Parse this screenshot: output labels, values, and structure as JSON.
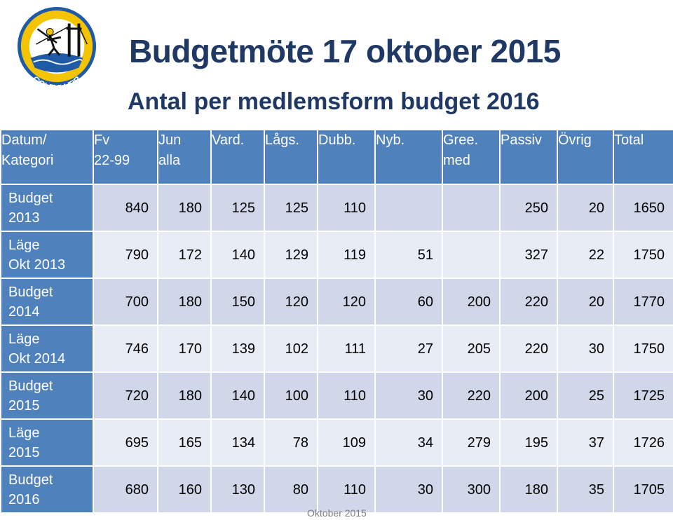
{
  "logo": {
    "top_text": "TJÖRNS",
    "bottom_text": "GOLFKLUBB"
  },
  "title": "Budgetmöte 17 oktober 2015",
  "subtitle": "Antal per medlemsform budget 2016",
  "table": {
    "headers": [
      {
        "line1": "Datum/",
        "line2": "Kategori"
      },
      {
        "line1": "Fv",
        "line2": "22-99"
      },
      {
        "line1": "Jun",
        "line2": "alla"
      },
      {
        "line1": "Vard.",
        "line2": ""
      },
      {
        "line1": "Lågs.",
        "line2": ""
      },
      {
        "line1": "Dubb.",
        "line2": ""
      },
      {
        "line1": "Nyb.",
        "line2": ""
      },
      {
        "line1": "Gree.",
        "line2": "med"
      },
      {
        "line1": "Passiv",
        "line2": ""
      },
      {
        "line1": "Övrig",
        "line2": ""
      },
      {
        "line1": "Total",
        "line2": ""
      }
    ],
    "rows": [
      {
        "label1": "Budget",
        "label2": "2013",
        "values": [
          "840",
          "180",
          "125",
          "125",
          "110",
          "",
          "",
          "250",
          "20",
          "1650"
        ]
      },
      {
        "label1": "Läge",
        "label2": "Okt 2013",
        "values": [
          "790",
          "172",
          "140",
          "129",
          "119",
          "51",
          "",
          "327",
          "22",
          "1750"
        ]
      },
      {
        "label1": "Budget",
        "label2": "2014",
        "values": [
          "700",
          "180",
          "150",
          "120",
          "120",
          "60",
          "200",
          "220",
          "20",
          "1770"
        ]
      },
      {
        "label1": "Läge",
        "label2": "Okt 2014",
        "values": [
          "746",
          "170",
          "139",
          "102",
          "111",
          "27",
          "205",
          "220",
          "30",
          "1750"
        ]
      },
      {
        "label1": "Budget",
        "label2": "2015",
        "values": [
          "720",
          "180",
          "140",
          "100",
          "110",
          "30",
          "220",
          "200",
          "25",
          "1725"
        ]
      },
      {
        "label1": "Läge",
        "label2": "2015",
        "values": [
          "695",
          "165",
          "134",
          "78",
          "109",
          "34",
          "279",
          "195",
          "37",
          "1726"
        ]
      },
      {
        "label1": "Budget",
        "label2": "2016",
        "values": [
          "680",
          "160",
          "130",
          "80",
          "110",
          "30",
          "300",
          "180",
          "35",
          "1705"
        ]
      }
    ]
  },
  "footer": "Oktober 2015",
  "colors": {
    "title": "#1f3864",
    "header_bg": "#4f81bd",
    "row_odd": "#cfd7e8",
    "row_even": "#e8ecf4"
  }
}
